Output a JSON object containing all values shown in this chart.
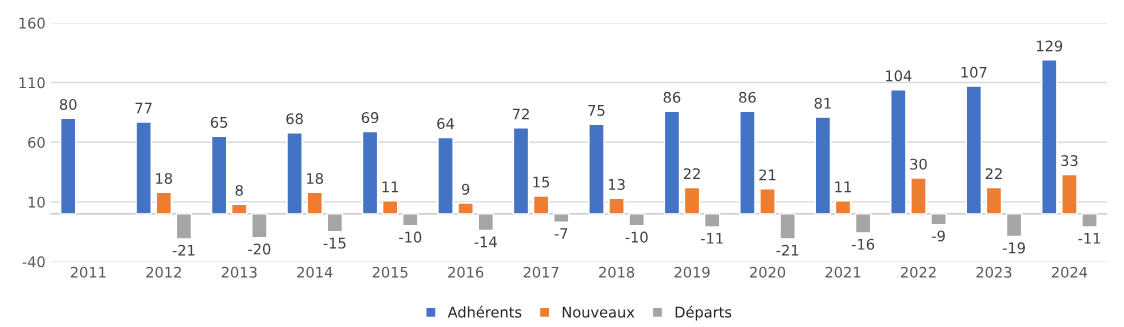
{
  "chart_data": {
    "type": "bar",
    "categories": [
      "2011",
      "2012",
      "2013",
      "2014",
      "2015",
      "2016",
      "2017",
      "2018",
      "2019",
      "2020",
      "2021",
      "2022",
      "2023",
      "2024"
    ],
    "series": [
      {
        "name": "Adhérents",
        "color": "#4472c4",
        "values": [
          80,
          77,
          65,
          68,
          69,
          64,
          72,
          75,
          86,
          86,
          81,
          104,
          107,
          129
        ]
      },
      {
        "name": "Nouveaux",
        "color": "#ed7d31",
        "values": [
          null,
          18,
          8,
          18,
          11,
          9,
          15,
          13,
          22,
          21,
          11,
          30,
          22,
          33
        ]
      },
      {
        "name": "Départs",
        "color": "#a5a5a5",
        "values": [
          null,
          -21,
          -20,
          -15,
          -10,
          -14,
          -7,
          -10,
          -11,
          -21,
          -16,
          -9,
          -19,
          -11
        ]
      }
    ],
    "ylim": [
      -40,
      160
    ],
    "yticks": [
      -40,
      10,
      60,
      110,
      160
    ],
    "grid": "y",
    "legend": "bottom",
    "data_labels": true
  }
}
